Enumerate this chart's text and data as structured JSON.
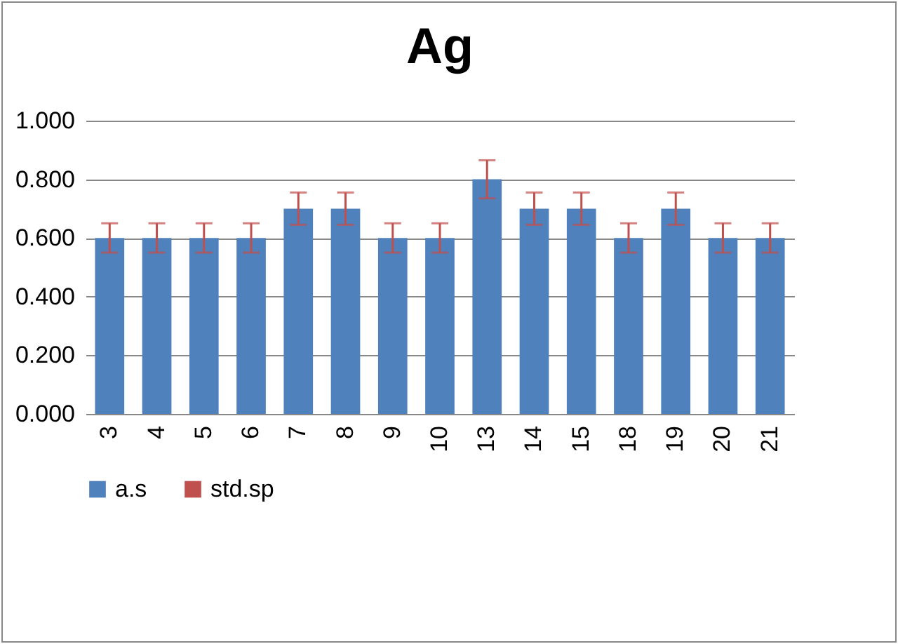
{
  "chart_data": {
    "type": "bar",
    "title": "Ag",
    "categories": [
      "3",
      "4",
      "5",
      "6",
      "7",
      "8",
      "9",
      "10",
      "13",
      "14",
      "15",
      "18",
      "19",
      "20",
      "21"
    ],
    "series": [
      {
        "name": "a.s",
        "color": "#4f81bd",
        "values": [
          0.6,
          0.6,
          0.6,
          0.6,
          0.7,
          0.7,
          0.6,
          0.6,
          0.8,
          0.7,
          0.7,
          0.6,
          0.7,
          0.6,
          0.6
        ],
        "errors": [
          0.05,
          0.05,
          0.05,
          0.05,
          0.055,
          0.055,
          0.05,
          0.05,
          0.065,
          0.055,
          0.055,
          0.05,
          0.055,
          0.05,
          0.05
        ]
      },
      {
        "name": "std.sp",
        "color": "#c0504d",
        "values": [
          null,
          null,
          null,
          null,
          null,
          null,
          null,
          null,
          null,
          null,
          null,
          null,
          null,
          null,
          null
        ]
      }
    ],
    "ylim": [
      0,
      1
    ],
    "yticks": [
      {
        "value": 0,
        "label": "0.000"
      },
      {
        "value": 0.2,
        "label": "0.200"
      },
      {
        "value": 0.4,
        "label": "0.400"
      },
      {
        "value": 0.6,
        "label": "0.600"
      },
      {
        "value": 0.8,
        "label": "0.800"
      },
      {
        "value": 1,
        "label": "1.000"
      }
    ],
    "grid": "y",
    "legend": "bottom"
  }
}
